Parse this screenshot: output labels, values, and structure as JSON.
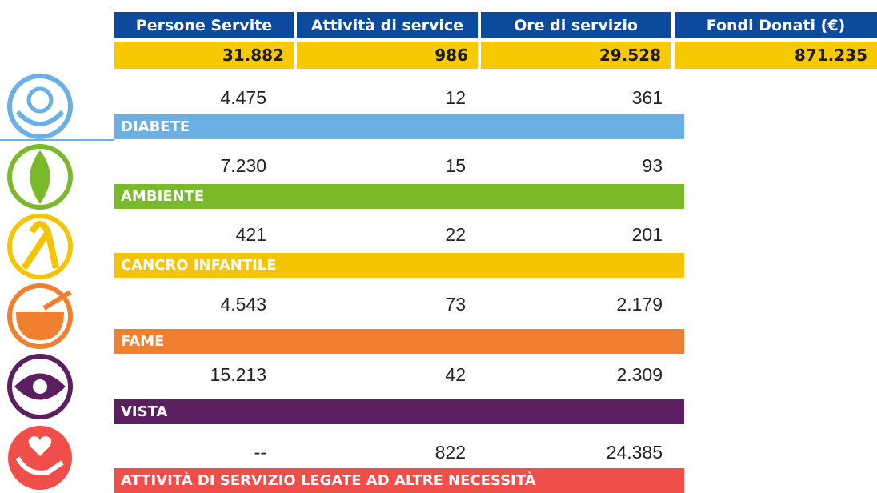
{
  "header": {
    "columns": [
      "Persone Servite",
      "Attività di service",
      "Ore di servizio",
      "Fondi Donati (€)"
    ],
    "totals": [
      "31.882",
      "986",
      "29.528",
      "871.235"
    ]
  },
  "categories": [
    {
      "name": "DIABETE",
      "values": [
        "4.475",
        "12",
        "361"
      ]
    },
    {
      "name": "AMBIENTE",
      "values": [
        "7.230",
        "15",
        "93"
      ]
    },
    {
      "name": "CANCRO INFANTILE",
      "values": [
        "421",
        "22",
        "201"
      ]
    },
    {
      "name": "FAME",
      "values": [
        "4.543",
        "73",
        "2.179"
      ]
    },
    {
      "name": "VISTA",
      "values": [
        "15.213",
        "42",
        "2.309"
      ]
    },
    {
      "name": "ATTIVITÀ DI SERVIZIO LEGATE AD ALTRE NECESSITÀ",
      "values": [
        "--",
        "822",
        "24.385"
      ]
    }
  ]
}
